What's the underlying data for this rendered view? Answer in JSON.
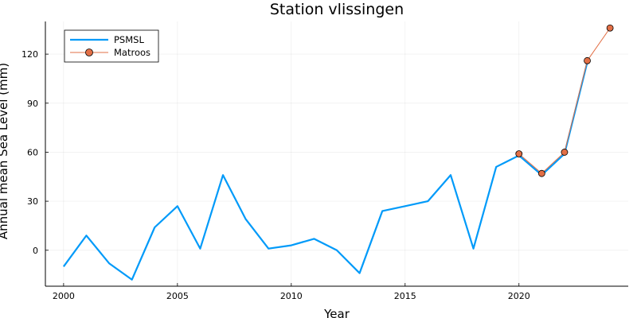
{
  "chart_data": {
    "type": "line",
    "title": "Station vlissingen",
    "xlabel": "Year",
    "ylabel": "Annual mean Sea Level (mm)",
    "xlim": [
      1999.2,
      2024.8
    ],
    "ylim": [
      -22,
      140
    ],
    "xticks": [
      2000,
      2005,
      2010,
      2015,
      2020
    ],
    "yticks": [
      0,
      30,
      60,
      90,
      120
    ],
    "grid": true,
    "legend": "top-left",
    "series": [
      {
        "name": "PSMSL",
        "color": "#009af9",
        "marker": "none",
        "x": [
          2000,
          2001,
          2002,
          2003,
          2004,
          2005,
          2006,
          2007,
          2008,
          2009,
          2010,
          2011,
          2012,
          2013,
          2014,
          2015,
          2016,
          2017,
          2018,
          2019,
          2020,
          2021,
          2022,
          2023
        ],
        "y": [
          -10,
          9,
          -8,
          -18,
          14,
          27,
          1,
          46,
          19,
          1,
          3,
          7,
          0,
          -14,
          24,
          27,
          30,
          46,
          1,
          51,
          58,
          46,
          59,
          115
        ]
      },
      {
        "name": "Matroos",
        "color": "#e26f46",
        "marker": "circle",
        "x": [
          2020,
          2021,
          2022,
          2023,
          2024
        ],
        "y": [
          59,
          47,
          60,
          116,
          136
        ]
      }
    ]
  }
}
